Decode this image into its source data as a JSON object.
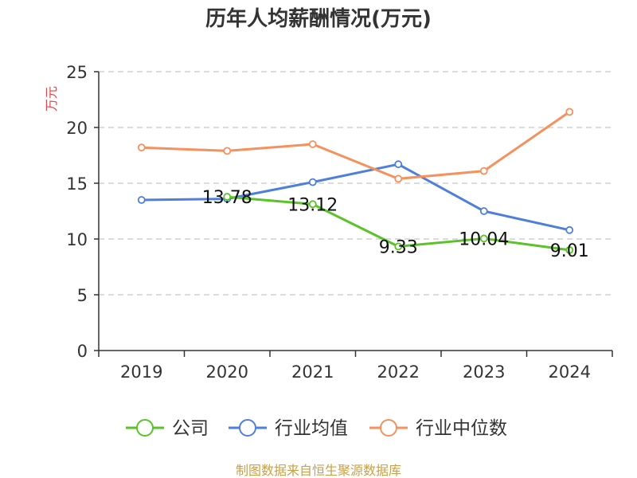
{
  "chart_data": {
    "type": "line",
    "title": "历年人均薪酬情况(万元)",
    "ylabel": "万元",
    "xlabel": "",
    "categories": [
      "2019",
      "2020",
      "2021",
      "2022",
      "2023",
      "2024"
    ],
    "ylim": [
      0,
      25
    ],
    "yticks": [
      0,
      5,
      10,
      15,
      20,
      25
    ],
    "grid": true,
    "legend_position": "bottom",
    "series": [
      {
        "name": "公司",
        "color": "#5ac328",
        "values": [
          null,
          13.78,
          13.12,
          9.33,
          10.04,
          9.01
        ],
        "labels": [
          "",
          "13.78",
          "13.12",
          "9.33",
          "10.04",
          "9.01"
        ]
      },
      {
        "name": "行业均值",
        "color": "#4f7fdc",
        "values": [
          13.5,
          13.6,
          15.1,
          16.7,
          12.5,
          10.8
        ]
      },
      {
        "name": "行业中位数",
        "color": "#f5915c",
        "values": [
          18.2,
          17.9,
          18.5,
          15.4,
          16.1,
          21.4
        ]
      }
    ],
    "source_note": "制图数据来自恒生聚源数据库",
    "colors": {
      "ylabel": "#e0474c",
      "source": "#c8a046",
      "axis": "#333333",
      "grid": "#c8c8c8"
    }
  }
}
